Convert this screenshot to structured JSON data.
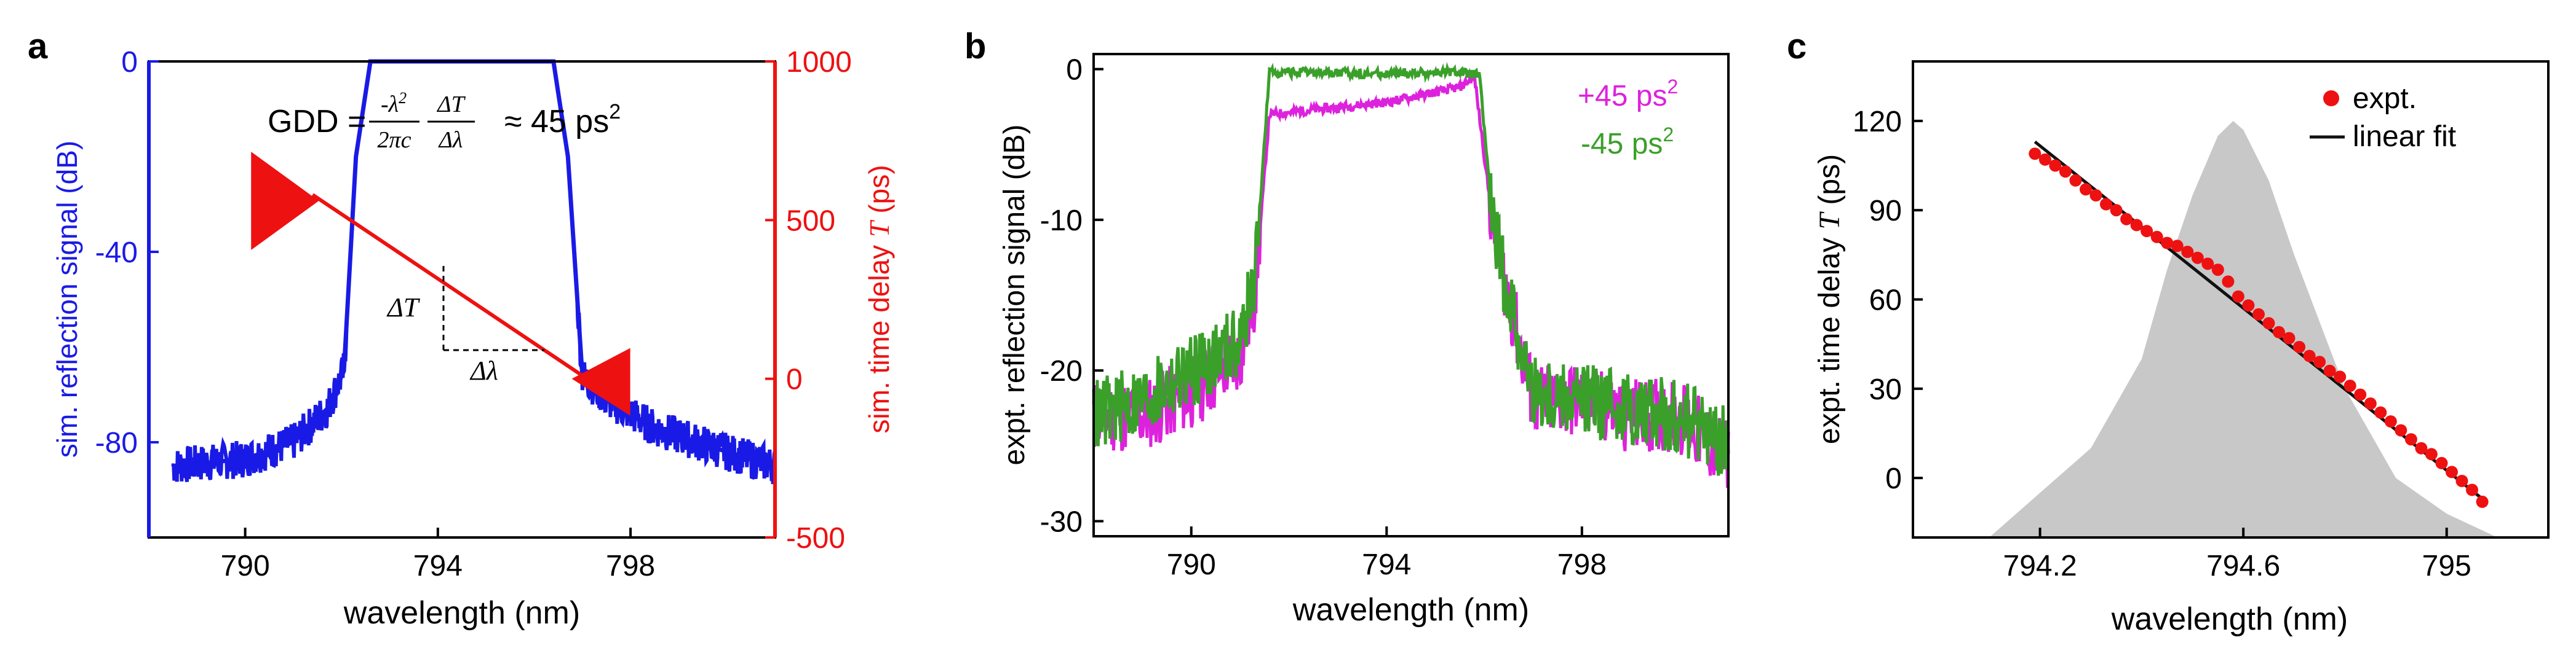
{
  "chart_data": [
    {
      "panel_label": "a",
      "type": "line",
      "xlabel": "wavelength (nm)",
      "ylabel_left": "sim. reflection signal (dB)",
      "ylabel_right_prefix": "sim. time delay ",
      "ylabel_right_var": "T",
      "ylabel_right_suffix": " (ps)",
      "xlim": [
        788,
        801
      ],
      "ylim_left": [
        -100,
        0
      ],
      "ylim_right": [
        -500,
        1000
      ],
      "x_ticks": [
        "790",
        "794",
        "798"
      ],
      "y_ticks_left": [
        "0",
        "-40",
        "-80"
      ],
      "y_ticks_right": [
        "1000",
        "500",
        "0",
        "-500"
      ],
      "annotation": {
        "lhs": "GDD = ",
        "numerator_1": "-λ",
        "numerator_1_sup": "2",
        "denominator_1": "2πc",
        "numerator_2": "ΔT",
        "denominator_2": "Δλ",
        "approx": "≈ 45 ps",
        "approx_sup": "2",
        "delta_t_label": "ΔT",
        "delta_lambda_label": "Δλ"
      },
      "series": [
        {
          "name": "sim. reflection",
          "color": "#1a1ae6",
          "x": [
            788.5,
            790,
            791,
            791.7,
            792.05,
            792.3,
            792.6,
            796.4,
            796.7,
            797.0,
            797.5,
            798.5,
            800,
            801
          ],
          "y": [
            -85,
            -83.5,
            -80,
            -73,
            -65,
            -20,
            0,
            0,
            -20,
            -66,
            -71,
            -77,
            -82,
            -85
          ]
        },
        {
          "name": "sim. time delay",
          "color": "#ee1111",
          "x": [
            791.4,
            797.1
          ],
          "y": [
            580,
            0
          ]
        }
      ]
    },
    {
      "panel_label": "b",
      "type": "line",
      "xlabel": "wavelength (nm)",
      "ylabel": "expt. reflection signal (dB)",
      "xlim": [
        788,
        801
      ],
      "ylim": [
        -31,
        1
      ],
      "x_ticks": [
        "790",
        "794",
        "798"
      ],
      "y_ticks": [
        "0",
        "-10",
        "-20",
        "-30"
      ],
      "legend": [
        {
          "label": "+45 ps",
          "sup": "2",
          "color": "#dd22dd"
        },
        {
          "label": "-45 ps",
          "sup": "2",
          "color": "#3aa02a"
        }
      ],
      "series": [
        {
          "name": "+45 ps2",
          "color": "#dd22dd",
          "x": [
            788,
            789,
            790,
            791,
            791.3,
            791.6,
            794,
            795.5,
            795.8,
            796.2,
            797,
            798,
            799,
            800,
            801
          ],
          "y": [
            -23,
            -23,
            -21.5,
            -19,
            -15,
            -3,
            -2.2,
            -1.2,
            -0.5,
            -11,
            -22,
            -22,
            -23,
            -23,
            -26
          ]
        },
        {
          "name": "-45 ps2",
          "color": "#3aa02a",
          "x": [
            788,
            789,
            790,
            791,
            791.3,
            791.6,
            794,
            795.5,
            795.9,
            796.2,
            797,
            798,
            799,
            800,
            801
          ],
          "y": [
            -23,
            -22,
            -20,
            -18,
            -14,
            -0.2,
            -0.3,
            -0.2,
            -0.4,
            -11,
            -21.5,
            -22,
            -22.5,
            -23,
            -25
          ]
        }
      ]
    },
    {
      "panel_label": "c",
      "type": "scatter",
      "xlabel": "wavelength (nm)",
      "ylabel_prefix": "expt. time delay ",
      "ylabel_var": "T",
      "ylabel_suffix": " (ps)",
      "xlim": [
        793.95,
        795.2
      ],
      "ylim": [
        -20,
        140
      ],
      "x_ticks": [
        "794.2",
        "794.6",
        "795"
      ],
      "y_ticks": [
        "120",
        "90",
        "60",
        "30",
        "0"
      ],
      "legend": [
        {
          "label": "expt.",
          "color": "#ee1111"
        },
        {
          "label": "linear fit",
          "color": "#111111"
        }
      ],
      "background_spectrum": {
        "color": "#c8c8c8",
        "x": [
          794.1,
          794.2,
          794.3,
          794.4,
          794.45,
          794.5,
          794.55,
          794.58,
          794.6,
          794.65,
          794.7,
          794.8,
          794.9,
          795.0,
          795.1,
          795.2
        ],
        "y": [
          -20,
          -5,
          10,
          40,
          70,
          95,
          115,
          120,
          117,
          100,
          75,
          30,
          0,
          -12,
          -20,
          -20
        ]
      },
      "expt_x": [
        794.19,
        794.21,
        794.23,
        794.25,
        794.27,
        794.29,
        794.31,
        794.33,
        794.35,
        794.37,
        794.39,
        794.41,
        794.43,
        794.45,
        794.47,
        794.49,
        794.51,
        794.53,
        794.55,
        794.57,
        794.59,
        794.61,
        794.63,
        794.65,
        794.67,
        794.69,
        794.71,
        794.73,
        794.75,
        794.77,
        794.79,
        794.81,
        794.83,
        794.85,
        794.87,
        794.89,
        794.91,
        794.93,
        794.95,
        794.97,
        794.99,
        795.01,
        795.03,
        795.05,
        795.07
      ],
      "expt_y": [
        109,
        107,
        105,
        103,
        100,
        97,
        95,
        92,
        90,
        87,
        85,
        83,
        81,
        79,
        78,
        76,
        74,
        72,
        70,
        66,
        61,
        58,
        55,
        52,
        49,
        47,
        44,
        41,
        39,
        36,
        34,
        31,
        28,
        25,
        22,
        19,
        16,
        13,
        10,
        8,
        5,
        2,
        -1,
        -4,
        -8
      ],
      "fit": {
        "x": [
          794.19,
          795.07
        ],
        "y": [
          113,
          -7
        ]
      }
    }
  ]
}
